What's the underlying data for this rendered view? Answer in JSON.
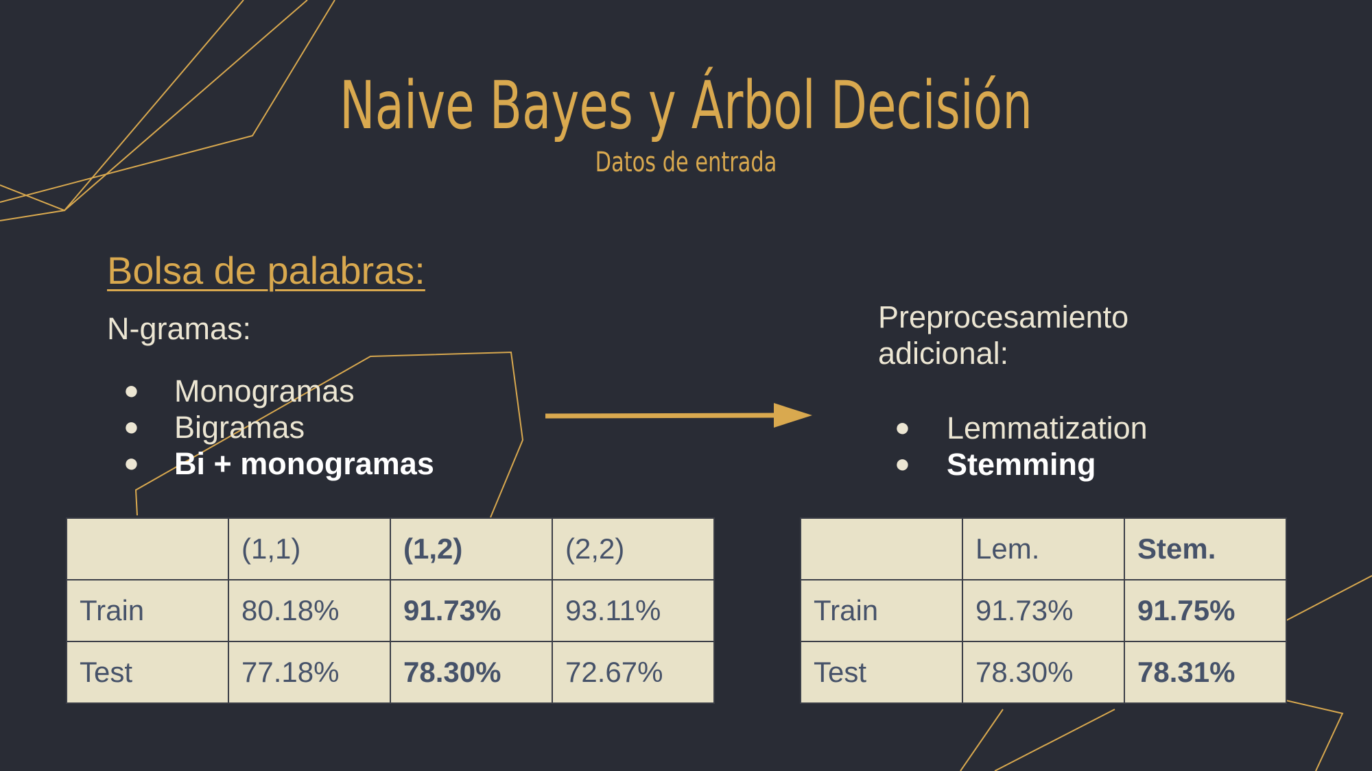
{
  "slide": {
    "title": "Naive Bayes y Árbol Decisión",
    "subtitle": "Datos de entrada"
  },
  "left": {
    "heading": "Bolsa de palabras:",
    "label": "N-gramas:",
    "bullets": [
      "Monogramas",
      "Bigramas",
      "Bi + monogramas"
    ],
    "bullet_glyph": "●"
  },
  "right": {
    "label": "Preprocesamiento adicional:",
    "bullets": [
      "Lemmatization",
      "Stemming"
    ],
    "bullet_glyph": "●"
  },
  "table_ngrams": {
    "header": [
      "",
      "(1,1)",
      "(1,2)",
      "(2,2)"
    ],
    "rows": [
      [
        "Train",
        "80.18%",
        "91.73%",
        "93.11%"
      ],
      [
        "Test",
        "77.18%",
        "78.30%",
        "72.67%"
      ]
    ],
    "highlight_column": "(1,2)"
  },
  "table_preproc": {
    "header": [
      "",
      "Lem.",
      "Stem."
    ],
    "rows": [
      [
        "Train",
        "91.73%",
        "91.75%"
      ],
      [
        "Test",
        "78.30%",
        "78.31%"
      ]
    ],
    "highlight_column": "Stem."
  },
  "colors": {
    "background": "#292c35",
    "accent_gold": "#d9a94f",
    "text_light": "#ece6d3",
    "table_fill": "#e8e2c8",
    "table_text": "#465269"
  }
}
